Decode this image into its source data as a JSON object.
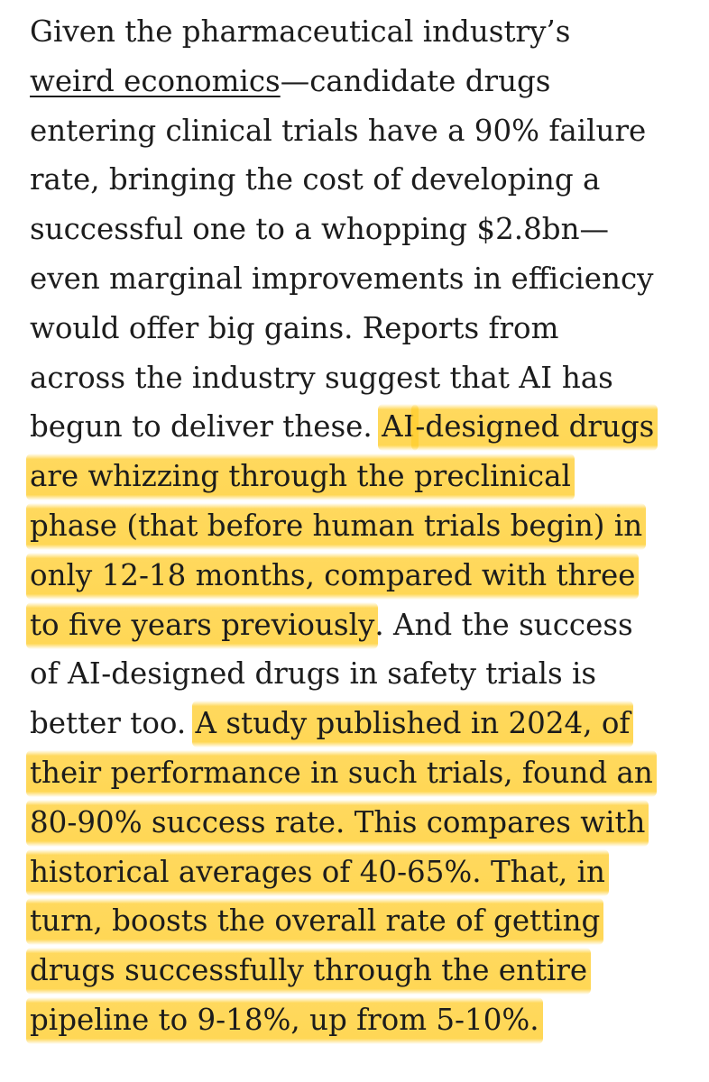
{
  "article": {
    "lines": [
      [
        {
          "t": "Given the pharmaceutical industry’s"
        }
      ],
      [
        {
          "t": "weird economics",
          "link": true
        },
        {
          "t": "—candidate drugs"
        }
      ],
      [
        {
          "t": "entering clinical trials have a 90% failure"
        }
      ],
      [
        {
          "t": "rate, bringing the cost of developing a"
        }
      ],
      [
        {
          "t": "successful one to a whopping $2.8bn—"
        }
      ],
      [
        {
          "t": "even marginal improvements in efficiency"
        }
      ],
      [
        {
          "t": "would offer big gains. Reports from"
        }
      ],
      [
        {
          "t": "across the industry suggest that "
        },
        {
          "t": "AI",
          "sc": true
        },
        {
          "t": " has"
        }
      ],
      [
        {
          "t": "begun to deliver these. "
        },
        {
          "t": "AI",
          "sc": true,
          "hl": true
        },
        {
          "t": "-designed drugs",
          "hl": true
        }
      ],
      [
        {
          "t": "are whizzing through the preclinical",
          "hl": true
        }
      ],
      [
        {
          "t": "phase (that before human trials begin) in",
          "hl": true
        }
      ],
      [
        {
          "t": "only 12-18 months, compared with three",
          "hl": true
        }
      ],
      [
        {
          "t": "to five years previously",
          "hl": true
        },
        {
          "t": ". And the success"
        }
      ],
      [
        {
          "t": "of "
        },
        {
          "t": "AI",
          "sc": true
        },
        {
          "t": "-designed drugs in safety trials is"
        }
      ],
      [
        {
          "t": "better too. "
        },
        {
          "t": "A study published in 2024, of",
          "hl": true
        }
      ],
      [
        {
          "t": "their performance in such trials, found an",
          "hl": true
        }
      ],
      [
        {
          "t": "80-90% success rate. This compares with",
          "hl": true
        }
      ],
      [
        {
          "t": "historical averages of 40-65%. That, in",
          "hl": true
        }
      ],
      [
        {
          "t": "turn, boosts the overall rate of getting",
          "hl": true
        }
      ],
      [
        {
          "t": "drugs successfully through the entire",
          "hl": true
        }
      ],
      [
        {
          "t": "pipeline to 9-18%, up from 5-10%.",
          "hl": true
        }
      ]
    ],
    "highlight_color": "#FFCE30",
    "text_color": "#1c1c1c"
  }
}
